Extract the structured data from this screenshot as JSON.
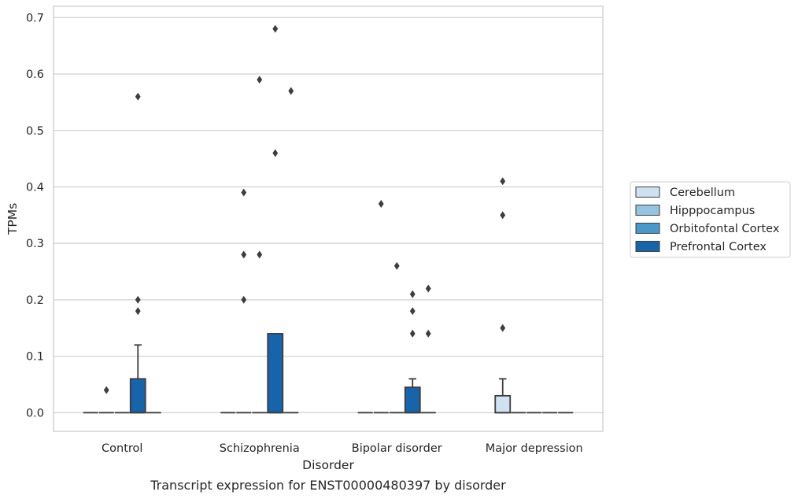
{
  "caption": "Transcript expression for ENST00000480397 by disorder",
  "chart_data": {
    "type": "box",
    "title": "",
    "xlabel": "Disorder",
    "ylabel": "TPMs",
    "ylim": [
      -0.033,
      0.72
    ],
    "yticks": [
      0.0,
      0.1,
      0.2,
      0.3,
      0.4,
      0.5,
      0.6,
      0.7
    ],
    "ytick_labels": [
      "0.0",
      "0.1",
      "0.2",
      "0.3",
      "0.4",
      "0.5",
      "0.6",
      "0.7"
    ],
    "grid": "horizontal",
    "legend_position": "right",
    "categories": [
      "Control",
      "Schizophrenia",
      "Bipolar disorder",
      "Major depression"
    ],
    "series": [
      {
        "name": "Cerebellum",
        "color": "#d0e1f2",
        "boxes": [
          {
            "q1": 0,
            "median": 0,
            "q3": 0,
            "whislo": 0,
            "whishi": 0,
            "fliers": []
          },
          {
            "q1": 0,
            "median": 0,
            "q3": 0,
            "whislo": 0,
            "whishi": 0,
            "fliers": []
          },
          {
            "q1": 0,
            "median": 0,
            "q3": 0,
            "whislo": 0,
            "whishi": 0,
            "fliers": []
          },
          {
            "q1": 0,
            "median": 0,
            "q3": 0.03,
            "whislo": 0,
            "whishi": 0.06,
            "fliers": [
              0.15,
              0.35,
              0.41
            ]
          }
        ]
      },
      {
        "name": "Hipppocampus",
        "color": "#94c4df",
        "boxes": [
          {
            "q1": 0,
            "median": 0,
            "q3": 0,
            "whislo": 0,
            "whishi": 0,
            "fliers": [
              0.04
            ]
          },
          {
            "q1": 0,
            "median": 0,
            "q3": 0,
            "whislo": 0,
            "whishi": 0,
            "fliers": [
              0.2,
              0.28,
              0.39
            ]
          },
          {
            "q1": 0,
            "median": 0,
            "q3": 0,
            "whislo": 0,
            "whishi": 0,
            "fliers": [
              0.37
            ]
          },
          {
            "q1": 0,
            "median": 0,
            "q3": 0,
            "whislo": 0,
            "whishi": 0,
            "fliers": []
          }
        ]
      },
      {
        "name": "Orbitofontal Cortex",
        "color": "#4a98c9",
        "boxes": [
          {
            "q1": 0,
            "median": 0,
            "q3": 0,
            "whislo": 0,
            "whishi": 0,
            "fliers": []
          },
          {
            "q1": 0,
            "median": 0,
            "q3": 0,
            "whislo": 0,
            "whishi": 0,
            "fliers": [
              0.28,
              0.59
            ]
          },
          {
            "q1": 0,
            "median": 0,
            "q3": 0,
            "whislo": 0,
            "whishi": 0,
            "fliers": [
              0.26
            ]
          },
          {
            "q1": 0,
            "median": 0,
            "q3": 0,
            "whislo": 0,
            "whishi": 0,
            "fliers": []
          }
        ]
      },
      {
        "name": "Prefrontal Cortex",
        "color": "#1764ab",
        "boxes": [
          {
            "q1": 0,
            "median": 0,
            "q3": 0.06,
            "whislo": 0,
            "whishi": 0.12,
            "fliers": [
              0.18,
              0.2,
              0.56
            ]
          },
          {
            "q1": 0,
            "median": 0,
            "q3": 0.14,
            "whislo": 0,
            "whishi": 0.14,
            "fliers": [
              0.46,
              0.68
            ]
          },
          {
            "q1": 0,
            "median": 0,
            "q3": 0.045,
            "whislo": 0,
            "whishi": 0.06,
            "fliers": [
              0.14,
              0.18,
              0.21
            ]
          },
          {
            "q1": 0,
            "median": 0,
            "q3": 0,
            "whislo": 0,
            "whishi": 0,
            "fliers": []
          }
        ]
      },
      {
        "name": "",
        "color": "#08306b",
        "boxes": [
          {
            "q1": 0,
            "median": 0,
            "q3": 0,
            "whislo": 0,
            "whishi": 0,
            "fliers": []
          },
          {
            "q1": 0,
            "median": 0,
            "q3": 0,
            "whislo": 0,
            "whishi": 0,
            "fliers": [
              0.57
            ]
          },
          {
            "q1": 0,
            "median": 0,
            "q3": 0,
            "whislo": 0,
            "whishi": 0,
            "fliers": [
              0.14,
              0.22
            ]
          },
          {
            "q1": 0,
            "median": 0,
            "q3": 0,
            "whislo": 0,
            "whishi": 0,
            "fliers": []
          }
        ]
      }
    ]
  }
}
